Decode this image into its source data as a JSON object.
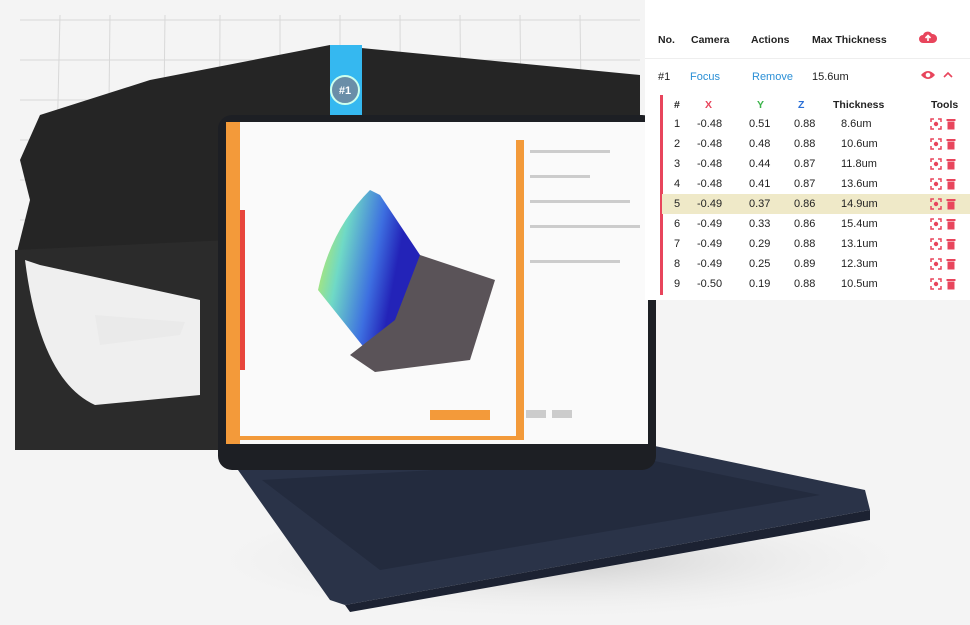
{
  "overlay_label": "#1",
  "panel": {
    "header": [
      "No.",
      "Camera",
      "Actions",
      "Max Thickness"
    ],
    "row": {
      "no": "#1",
      "camera": "Focus",
      "actions": "Remove",
      "max_thickness": "15.6um"
    },
    "points": {
      "columns": [
        "#",
        "X",
        "Y",
        "Z",
        "Thickness",
        "Tools"
      ],
      "rows": [
        [
          "1",
          "-0.48",
          "0.51",
          "0.88",
          "8.6um"
        ],
        [
          "2",
          "-0.48",
          "0.48",
          "0.88",
          "10.6um"
        ],
        [
          "3",
          "-0.48",
          "0.44",
          "0.87",
          "11.8um"
        ],
        [
          "4",
          "-0.48",
          "0.41",
          "0.87",
          "13.6um"
        ],
        [
          "5",
          "-0.49",
          "0.37",
          "0.86",
          "14.9um"
        ],
        [
          "6",
          "-0.49",
          "0.33",
          "0.86",
          "15.4um"
        ],
        [
          "7",
          "-0.49",
          "0.29",
          "0.88",
          "13.1um"
        ],
        [
          "8",
          "-0.49",
          "0.25",
          "0.89",
          "12.3um"
        ],
        [
          "9",
          "-0.50",
          "0.19",
          "0.88",
          "10.5um"
        ]
      ]
    }
  }
}
